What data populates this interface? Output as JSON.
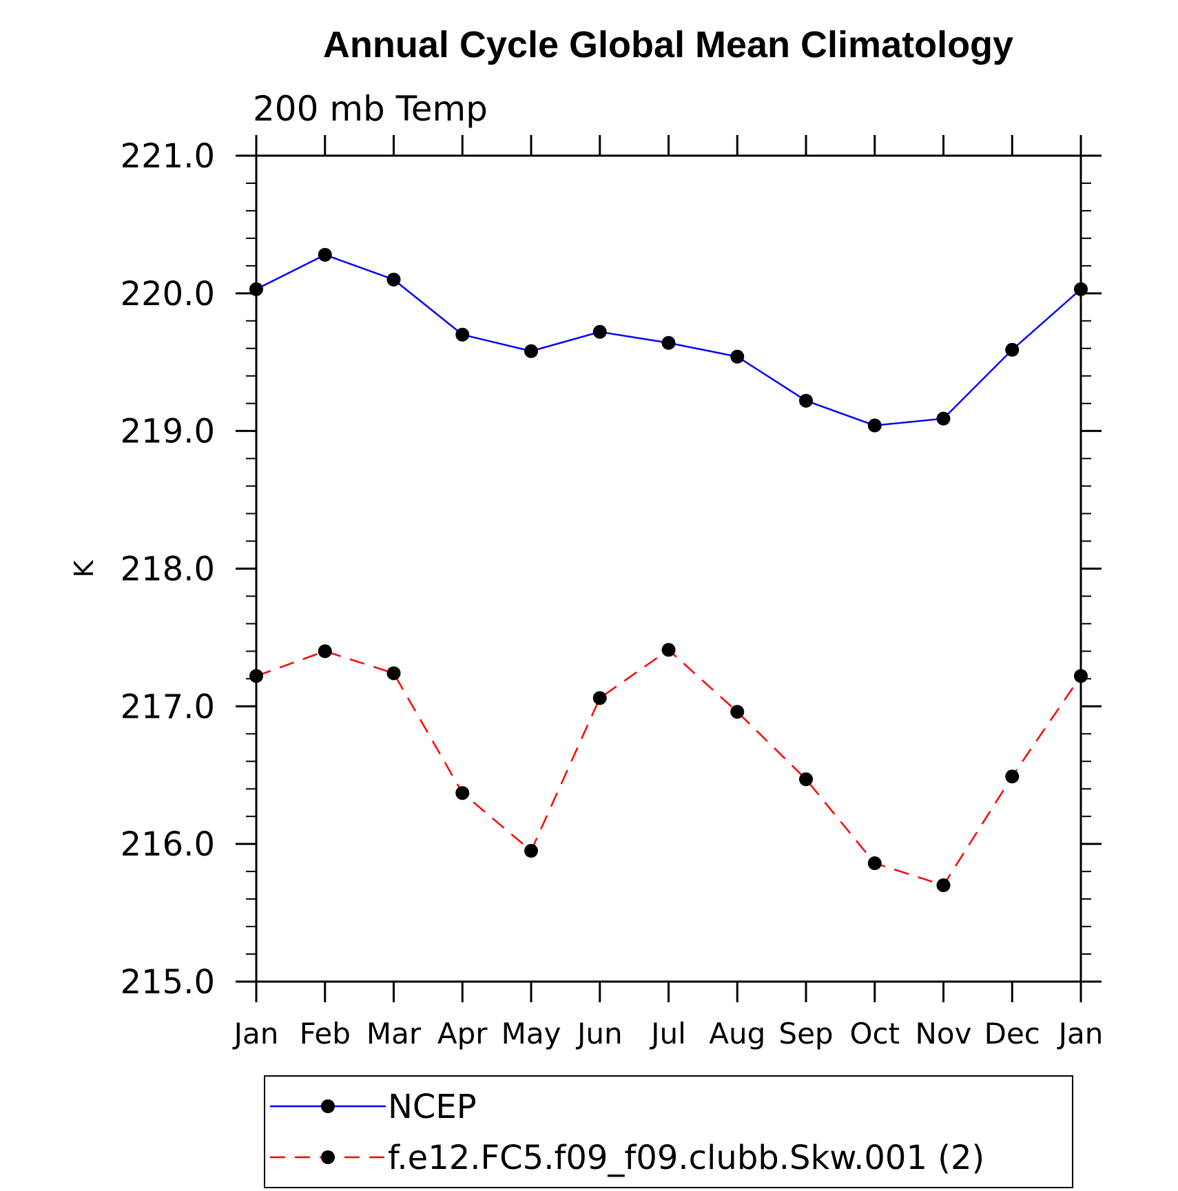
{
  "chart_data": {
    "type": "line",
    "title": "Annual Cycle Global Mean Climatology",
    "subtitle": "200 mb Temp",
    "xlabel": "",
    "ylabel": "K",
    "ylim": [
      215.0,
      221.0
    ],
    "yticks": [
      "215.0",
      "216.0",
      "217.0",
      "218.0",
      "219.0",
      "220.0",
      "221.0"
    ],
    "y_minor_step": 0.2,
    "categories": [
      "Jan",
      "Feb",
      "Mar",
      "Apr",
      "May",
      "Jun",
      "Jul",
      "Aug",
      "Sep",
      "Oct",
      "Nov",
      "Dec",
      "Jan"
    ],
    "grid": false,
    "legend_position": "bottom",
    "series": [
      {
        "name": "NCEP",
        "color": "#0000ff",
        "line_style": "solid",
        "marker": "filled-circle",
        "values": [
          220.03,
          220.28,
          220.1,
          219.7,
          219.58,
          219.72,
          219.64,
          219.54,
          219.22,
          219.04,
          219.09,
          219.59,
          220.03
        ]
      },
      {
        "name": "f.e12.FC5.f09_f09.clubb.Skw.001 (2)",
        "color": "#ff0000",
        "line_style": "dashed",
        "marker": "filled-circle",
        "values": [
          217.22,
          217.4,
          217.24,
          216.37,
          215.95,
          217.06,
          217.41,
          216.96,
          216.47,
          215.86,
          215.7,
          216.49,
          217.22
        ]
      }
    ]
  }
}
